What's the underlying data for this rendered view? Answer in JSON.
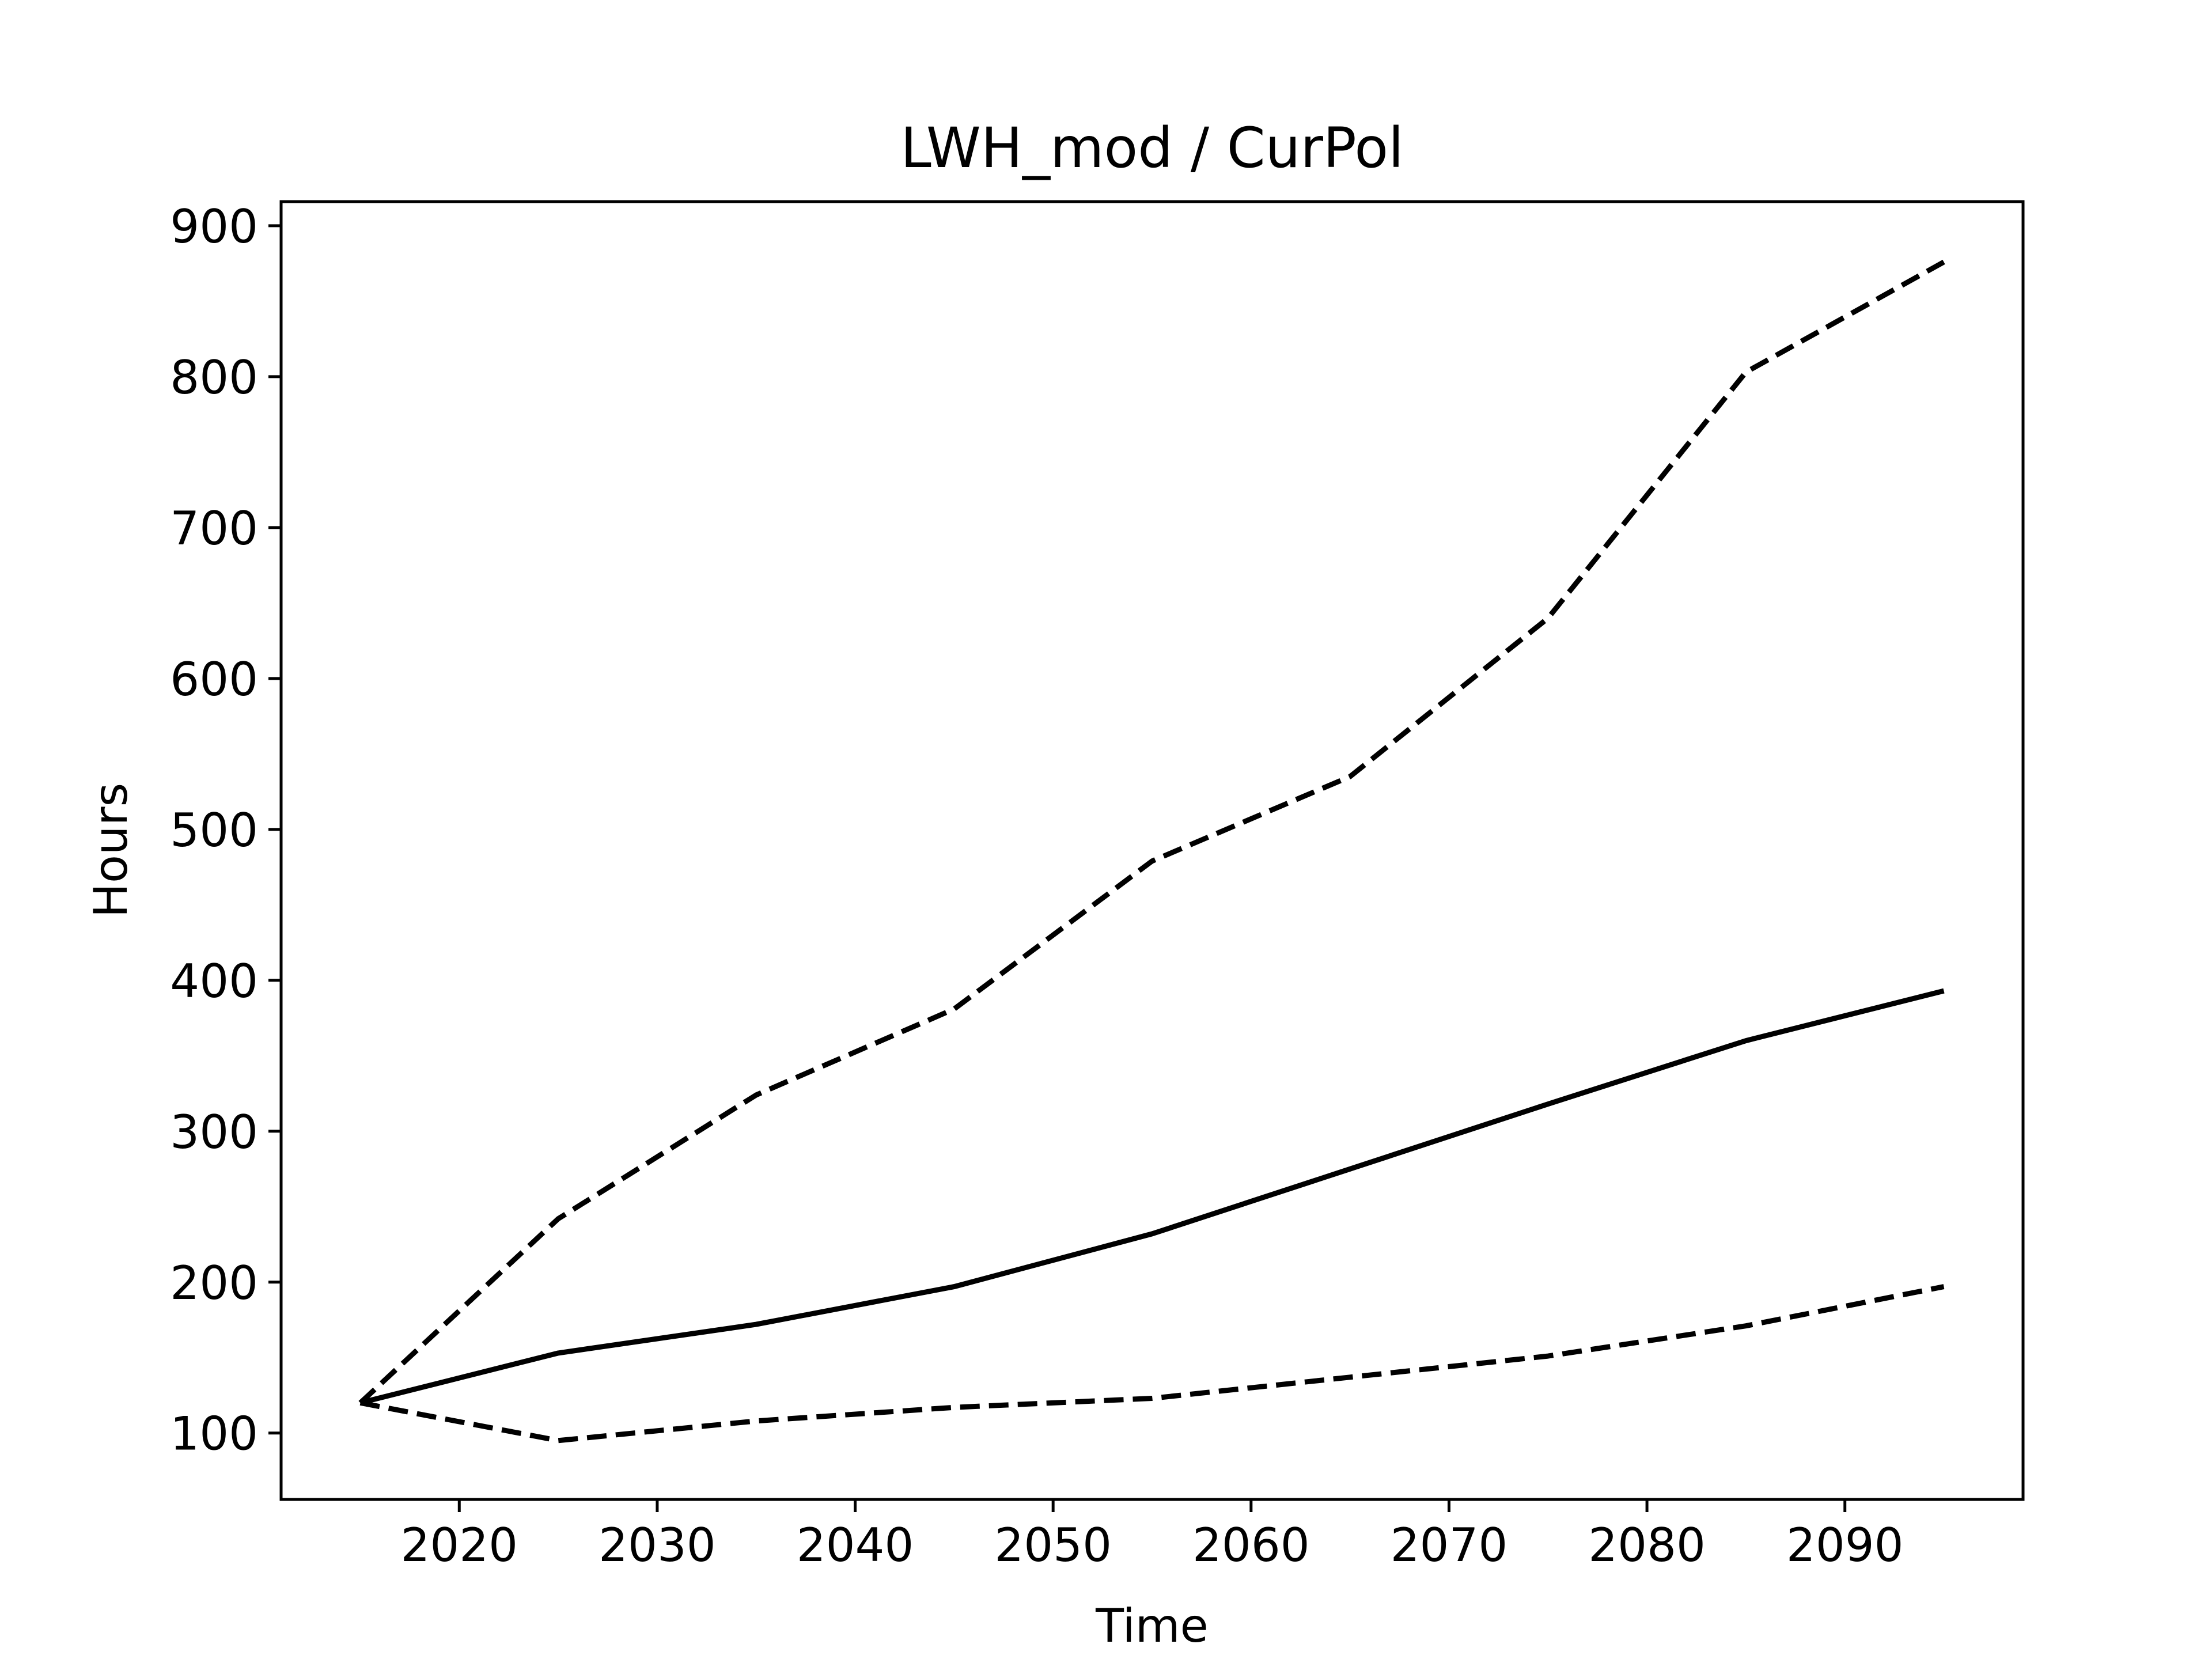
{
  "chart_data": {
    "type": "line",
    "title": "LWH_mod / CurPol",
    "xlabel": "Time",
    "ylabel": "Hours",
    "xlim": [
      2011,
      2099
    ],
    "ylim": [
      56,
      916
    ],
    "xticks": [
      "2020",
      "2030",
      "2040",
      "2050",
      "2060",
      "2070",
      "2080",
      "2090"
    ],
    "yticks": [
      "100",
      "200",
      "300",
      "400",
      "500",
      "600",
      "700",
      "800",
      "900"
    ],
    "grid": false,
    "legend": "none",
    "x": [
      2015,
      2025,
      2035,
      2045,
      2055,
      2065,
      2075,
      2085,
      2095
    ],
    "series": [
      {
        "style": "solid",
        "color": "#000000",
        "values": [
          120,
          153,
          172,
          197,
          232,
          275,
          318,
          360,
          393
        ]
      },
      {
        "style": "dashed",
        "color": "#000000",
        "values": [
          120,
          242,
          324,
          381,
          479,
          535,
          640,
          803,
          876
        ]
      },
      {
        "style": "dashed",
        "color": "#000000",
        "values": [
          120,
          95,
          108,
          117,
          123,
          137,
          151,
          171,
          197
        ]
      }
    ]
  }
}
